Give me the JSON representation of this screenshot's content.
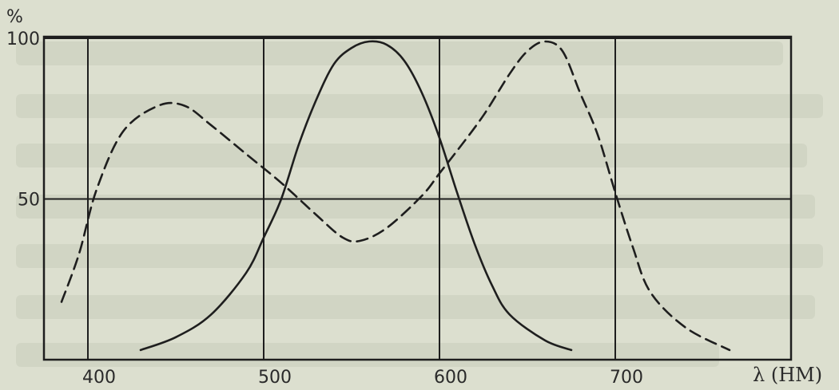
{
  "chart_data": {
    "type": "line",
    "y_unit": "%",
    "xlabel": "λ (НМ)",
    "xlim": [
      375,
      800
    ],
    "ylim": [
      0,
      100
    ],
    "x_ticks": [
      400,
      500,
      600,
      700
    ],
    "y_ticks": [
      50,
      100
    ],
    "x_tick_labels": [
      "400",
      "500",
      "600",
      "700"
    ],
    "y_tick_labels": [
      "50",
      "100"
    ],
    "grid": true,
    "series": [
      {
        "style": "solid",
        "color": "#1e1e1e",
        "x": [
          430,
          450,
          470,
          490,
          500,
          510,
          520,
          530,
          540,
          550,
          560,
          570,
          580,
          590,
          600,
          610,
          620,
          630,
          640,
          660,
          675
        ],
        "y": [
          3,
          7,
          14,
          27,
          38,
          50,
          67,
          81,
          92,
          97,
          99,
          98,
          93,
          83,
          69,
          52,
          36,
          23,
          14,
          6,
          3
        ]
      },
      {
        "style": "dashed",
        "color": "#1e1e1e",
        "x": [
          385,
          395,
          405,
          420,
          440,
          455,
          470,
          490,
          510,
          530,
          545,
          555,
          570,
          590,
          600,
          610,
          625,
          640,
          650,
          660,
          670,
          680,
          690,
          700,
          710,
          720,
          740,
          765
        ],
        "y": [
          18,
          33,
          53,
          71,
          79,
          79,
          73,
          64,
          55,
          45,
          38,
          37,
          41,
          51,
          58,
          65,
          76,
          89,
          96,
          99,
          96,
          83,
          70,
          52,
          35,
          21,
          10,
          3
        ]
      }
    ]
  }
}
